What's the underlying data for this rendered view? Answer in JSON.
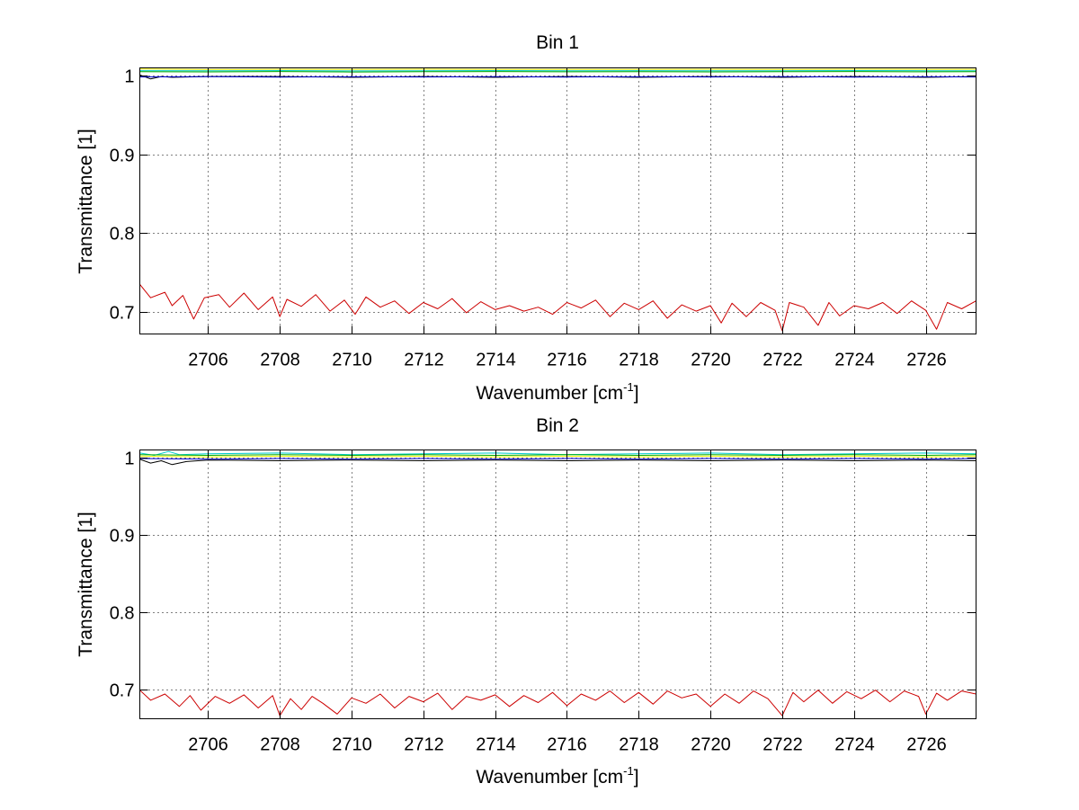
{
  "chart_data": [
    {
      "type": "line",
      "title": "Bin 1",
      "xlabel_main": "Wavenumber [cm",
      "xlabel_sup": "-1",
      "xlabel_end": "]",
      "ylabel": "Transmittance [1]",
      "xlim": [
        2704.1,
        2727.4
      ],
      "ylim": [
        0.672,
        1.01
      ],
      "xticks": [
        2706,
        2708,
        2710,
        2712,
        2714,
        2716,
        2718,
        2720,
        2722,
        2724,
        2726
      ],
      "yticks": [
        0.7,
        0.8,
        0.9,
        1
      ],
      "yticklabels": [
        "0.7",
        "0.8",
        "0.9",
        "1"
      ],
      "grid": true,
      "series": [
        {
          "color": "#ffff00",
          "x": [
            2704.1,
            2706,
            2708,
            2710,
            2712,
            2714,
            2716,
            2718,
            2720,
            2722,
            2724,
            2726,
            2727.4
          ],
          "y": [
            1.0085,
            1.0078,
            1.0082,
            1.0079,
            1.0083,
            1.008,
            1.0081,
            1.0079,
            1.0082,
            1.008,
            1.0083,
            1.0081,
            1.0082
          ]
        },
        {
          "color": "#00cccc",
          "x": [
            2704.1,
            2706,
            2708,
            2710,
            2712,
            2714,
            2716,
            2718,
            2720,
            2722,
            2724,
            2726,
            2727.4
          ],
          "y": [
            1.0065,
            1.0062,
            1.0066,
            1.0061,
            1.0064,
            1.0066,
            1.0063,
            1.0065,
            1.0062,
            1.0064,
            1.0066,
            1.0063,
            1.0064
          ]
        },
        {
          "color": "#00aa00",
          "x": [
            2704.1,
            2706,
            2708,
            2710,
            2712,
            2714,
            2716,
            2718,
            2720,
            2722,
            2724,
            2726,
            2727.4
          ],
          "y": [
            1.0052,
            1.0049,
            1.0053,
            1.0048,
            1.0051,
            1.0053,
            1.005,
            1.0052,
            1.0049,
            1.0051,
            1.0053,
            1.005,
            1.0051
          ]
        },
        {
          "color": "#000000",
          "x": [
            2704.1,
            2704.4,
            2704.7,
            2705,
            2706,
            2708,
            2710,
            2712,
            2714,
            2716,
            2718,
            2720,
            2722,
            2724,
            2726,
            2727.4
          ],
          "y": [
            1.001,
            0.996,
            0.999,
            0.998,
            0.999,
            0.999,
            0.998,
            0.999,
            0.998,
            0.999,
            0.998,
            0.999,
            0.998,
            0.999,
            0.998,
            0.999
          ]
        },
        {
          "color": "#0000cc",
          "x": [
            2704.1,
            2706,
            2708,
            2710,
            2712,
            2714,
            2716,
            2718,
            2720,
            2722,
            2724,
            2726,
            2727.4
          ],
          "y": [
            0.9985,
            0.9988,
            0.9984,
            0.9987,
            0.9985,
            0.9988,
            0.9984,
            0.9987,
            0.9985,
            0.9988,
            0.9984,
            0.9987,
            0.9985
          ]
        },
        {
          "color": "#cc0000",
          "x": [
            2704.1,
            2704.4,
            2704.8,
            2705,
            2705.3,
            2705.6,
            2705.9,
            2706.3,
            2706.6,
            2707,
            2707.4,
            2707.8,
            2708,
            2708.2,
            2708.6,
            2709,
            2709.4,
            2709.8,
            2710.1,
            2710.4,
            2710.8,
            2711.2,
            2711.6,
            2712,
            2712.4,
            2712.8,
            2713.2,
            2713.6,
            2714,
            2714.4,
            2714.8,
            2715.2,
            2715.6,
            2716,
            2716.4,
            2716.8,
            2717.2,
            2717.6,
            2718,
            2718.4,
            2718.8,
            2719.2,
            2719.6,
            2720,
            2720.3,
            2720.6,
            2721,
            2721.4,
            2721.8,
            2722,
            2722.2,
            2722.6,
            2723,
            2723.3,
            2723.6,
            2724,
            2724.4,
            2724.8,
            2725.2,
            2725.6,
            2726,
            2726.3,
            2726.6,
            2727,
            2727.4
          ],
          "y": [
            0.735,
            0.718,
            0.725,
            0.708,
            0.721,
            0.691,
            0.718,
            0.722,
            0.706,
            0.724,
            0.703,
            0.719,
            0.694,
            0.716,
            0.707,
            0.722,
            0.701,
            0.715,
            0.697,
            0.719,
            0.706,
            0.714,
            0.698,
            0.712,
            0.704,
            0.717,
            0.699,
            0.713,
            0.703,
            0.708,
            0.701,
            0.706,
            0.697,
            0.712,
            0.705,
            0.715,
            0.694,
            0.711,
            0.703,
            0.714,
            0.692,
            0.709,
            0.701,
            0.708,
            0.686,
            0.711,
            0.694,
            0.712,
            0.702,
            0.676,
            0.712,
            0.706,
            0.683,
            0.712,
            0.695,
            0.708,
            0.704,
            0.712,
            0.698,
            0.714,
            0.702,
            0.678,
            0.712,
            0.704,
            0.714
          ]
        }
      ]
    },
    {
      "type": "line",
      "title": "Bin 2",
      "xlabel_main": "Wavenumber [cm",
      "xlabel_sup": "-1",
      "xlabel_end": "]",
      "ylabel": "Transmittance [1]",
      "xlim": [
        2704.1,
        2727.4
      ],
      "ylim": [
        0.662,
        1.01
      ],
      "xticks": [
        2706,
        2708,
        2710,
        2712,
        2714,
        2716,
        2718,
        2720,
        2722,
        2724,
        2726
      ],
      "yticks": [
        0.7,
        0.8,
        0.9,
        1
      ],
      "yticklabels": [
        "0.7",
        "0.8",
        "0.9",
        "1"
      ],
      "grid": true,
      "series": [
        {
          "color": "#00cccc",
          "x": [
            2704.1,
            2704.5,
            2704.9,
            2705.2,
            2706,
            2708,
            2710,
            2712,
            2714,
            2716,
            2718,
            2720,
            2722,
            2724,
            2726,
            2727.4
          ],
          "y": [
            1.006,
            1.003,
            1.008,
            1.004,
            1.005,
            1.006,
            1.004,
            1.005,
            1.006,
            1.004,
            1.005,
            1.006,
            1.004,
            1.005,
            1.006,
            1.005
          ]
        },
        {
          "color": "#00aa00",
          "x": [
            2704.1,
            2706,
            2708,
            2710,
            2712,
            2714,
            2716,
            2718,
            2720,
            2722,
            2724,
            2726,
            2727.4
          ],
          "y": [
            1.004,
            1.003,
            1.004,
            1.003,
            1.004,
            1.003,
            1.004,
            1.003,
            1.004,
            1.003,
            1.004,
            1.003,
            1.004
          ]
        },
        {
          "color": "#ffff00",
          "x": [
            2704.1,
            2706,
            2708,
            2710,
            2712,
            2714,
            2716,
            2718,
            2720,
            2722,
            2724,
            2726,
            2727.4
          ],
          "y": [
            1.002,
            1.001,
            1.002,
            1.001,
            1.002,
            1.001,
            1.002,
            1.001,
            1.002,
            1.001,
            1.002,
            1.001,
            1.002
          ]
        },
        {
          "color": "#0000cc",
          "x": [
            2704.1,
            2706,
            2708,
            2710,
            2712,
            2714,
            2716,
            2718,
            2720,
            2722,
            2724,
            2726,
            2727.4
          ],
          "y": [
            0.999,
            0.998,
            0.999,
            0.998,
            0.999,
            0.998,
            0.999,
            0.998,
            0.999,
            0.998,
            0.999,
            0.998,
            0.999
          ]
        },
        {
          "color": "#000000",
          "x": [
            2704.1,
            2704.4,
            2704.7,
            2705,
            2705.4,
            2706,
            2708,
            2710,
            2712,
            2714,
            2716,
            2718,
            2720,
            2722,
            2724,
            2726,
            2727.4
          ],
          "y": [
            0.998,
            0.993,
            0.996,
            0.991,
            0.995,
            0.997,
            0.996,
            0.997,
            0.996,
            0.997,
            0.996,
            0.997,
            0.996,
            0.997,
            0.996,
            0.997,
            0.996
          ]
        },
        {
          "color": "#cc0000",
          "x": [
            2704.1,
            2704.4,
            2704.8,
            2705.2,
            2705.5,
            2705.8,
            2706.2,
            2706.6,
            2707,
            2707.4,
            2707.8,
            2708,
            2708.3,
            2708.6,
            2708.9,
            2709.2,
            2709.6,
            2710,
            2710.4,
            2710.8,
            2711.2,
            2711.6,
            2712,
            2712.4,
            2712.8,
            2713.2,
            2713.6,
            2714,
            2714.4,
            2714.8,
            2715.2,
            2715.6,
            2716,
            2716.4,
            2716.8,
            2717.2,
            2717.6,
            2718,
            2718.4,
            2718.8,
            2719.2,
            2719.6,
            2720,
            2720.4,
            2720.8,
            2721.2,
            2721.6,
            2722,
            2722.3,
            2722.6,
            2723,
            2723.4,
            2723.8,
            2724.2,
            2724.6,
            2725,
            2725.4,
            2725.8,
            2726,
            2726.3,
            2726.6,
            2727,
            2727.4
          ],
          "y": [
            0.699,
            0.686,
            0.694,
            0.678,
            0.692,
            0.673,
            0.691,
            0.682,
            0.693,
            0.676,
            0.692,
            0.666,
            0.688,
            0.674,
            0.691,
            0.682,
            0.668,
            0.689,
            0.682,
            0.694,
            0.676,
            0.691,
            0.684,
            0.695,
            0.674,
            0.691,
            0.686,
            0.693,
            0.678,
            0.692,
            0.683,
            0.696,
            0.679,
            0.694,
            0.686,
            0.698,
            0.683,
            0.696,
            0.681,
            0.698,
            0.689,
            0.694,
            0.678,
            0.694,
            0.682,
            0.698,
            0.688,
            0.666,
            0.696,
            0.684,
            0.699,
            0.682,
            0.697,
            0.688,
            0.699,
            0.684,
            0.698,
            0.691,
            0.668,
            0.695,
            0.686,
            0.698,
            0.694
          ]
        }
      ]
    }
  ]
}
